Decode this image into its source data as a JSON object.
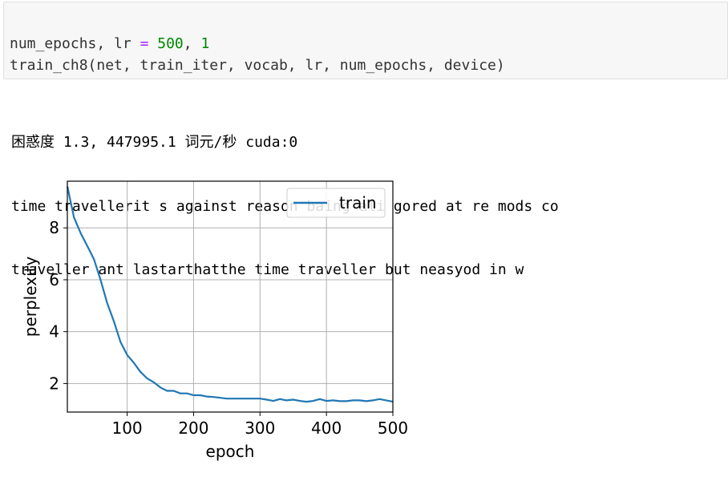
{
  "code_cell": {
    "line1": {
      "lhs": "num_epochs, lr ",
      "op": "=",
      "num1": "500",
      "sep": ", ",
      "num2": "1"
    },
    "line2": "train_ch8(net, train_iter, vocab, lr, num_epochs, device)"
  },
  "output": {
    "lines": [
      "困惑度 1.3, 447995.1 词元/秒 cuda:0",
      "time travellerit s against reason baing ali gored at re mods co",
      "traveller ant lastarthatthe time traveller but neasyod in w"
    ]
  },
  "chart_data": {
    "type": "line",
    "xlabel": "epoch",
    "ylabel": "perplexity",
    "xlim": [
      10,
      500
    ],
    "ylim": [
      0.9,
      9.8
    ],
    "xticks": [
      100,
      200,
      300,
      400,
      500
    ],
    "yticks": [
      2,
      4,
      6,
      8
    ],
    "grid": true,
    "legend_position": "upper-right",
    "series": [
      {
        "name": "train",
        "color": "#1f77b4",
        "x": [
          10,
          20,
          30,
          40,
          50,
          60,
          70,
          80,
          90,
          100,
          110,
          120,
          130,
          140,
          150,
          160,
          170,
          180,
          190,
          200,
          210,
          220,
          230,
          240,
          250,
          260,
          270,
          280,
          290,
          300,
          310,
          320,
          330,
          340,
          350,
          360,
          370,
          380,
          390,
          400,
          410,
          420,
          430,
          440,
          450,
          460,
          470,
          480,
          490,
          500
        ],
        "y": [
          9.6,
          8.4,
          7.8,
          7.3,
          6.8,
          6.0,
          5.1,
          4.4,
          3.6,
          3.1,
          2.8,
          2.45,
          2.2,
          2.05,
          1.85,
          1.72,
          1.72,
          1.62,
          1.62,
          1.55,
          1.55,
          1.5,
          1.48,
          1.45,
          1.42,
          1.42,
          1.42,
          1.42,
          1.42,
          1.42,
          1.38,
          1.33,
          1.4,
          1.35,
          1.38,
          1.33,
          1.3,
          1.33,
          1.4,
          1.33,
          1.35,
          1.32,
          1.32,
          1.35,
          1.35,
          1.32,
          1.35,
          1.4,
          1.35,
          1.3
        ]
      }
    ]
  }
}
